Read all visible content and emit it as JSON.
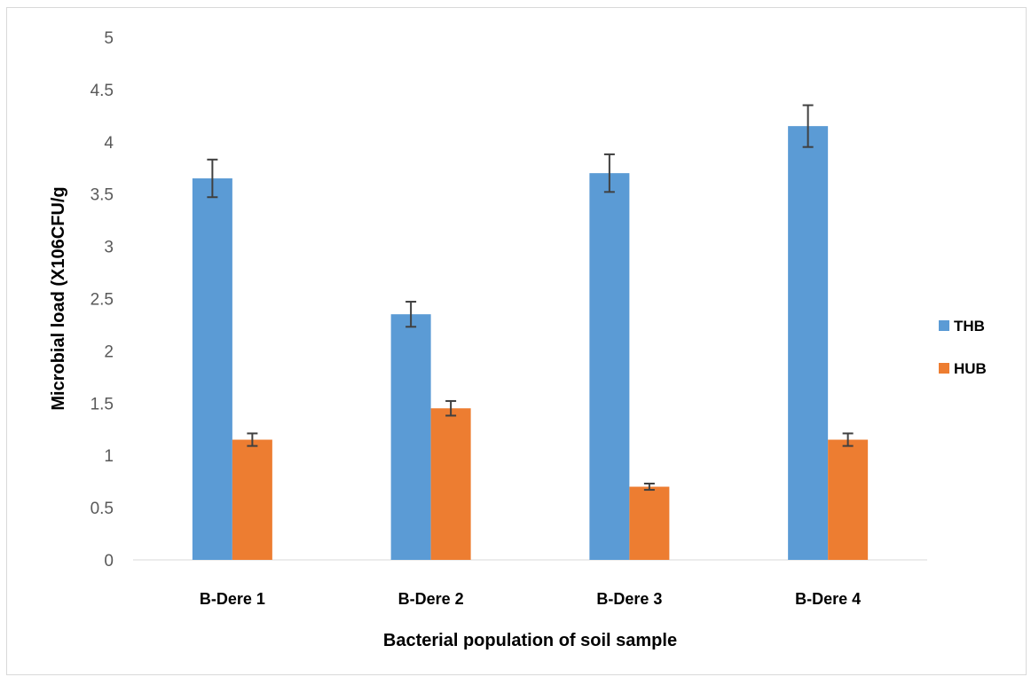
{
  "chart_data": {
    "type": "bar",
    "title": "",
    "xlabel": "Bacterial population of soil sample",
    "ylabel": "Microbial load (X106CFU/g",
    "ylim": [
      0,
      5
    ],
    "yticks": [
      "0",
      "0.5",
      "1",
      "1.5",
      "2",
      "2.5",
      "3",
      "3.5",
      "4",
      "4.5",
      "5"
    ],
    "grid": false,
    "legend": "right",
    "categories": [
      "B-Dere 1",
      "B-Dere 2",
      "B-Dere 3",
      "B-Dere 4"
    ],
    "series": [
      {
        "name": "THB",
        "color": "#5b9bd5",
        "values": [
          3.65,
          2.35,
          3.7,
          4.15
        ],
        "error": [
          0.18,
          0.12,
          0.18,
          0.2
        ]
      },
      {
        "name": "HUB",
        "color": "#ed7d31",
        "values": [
          1.15,
          1.45,
          0.7,
          1.15
        ],
        "error": [
          0.06,
          0.07,
          0.03,
          0.06
        ]
      }
    ]
  }
}
